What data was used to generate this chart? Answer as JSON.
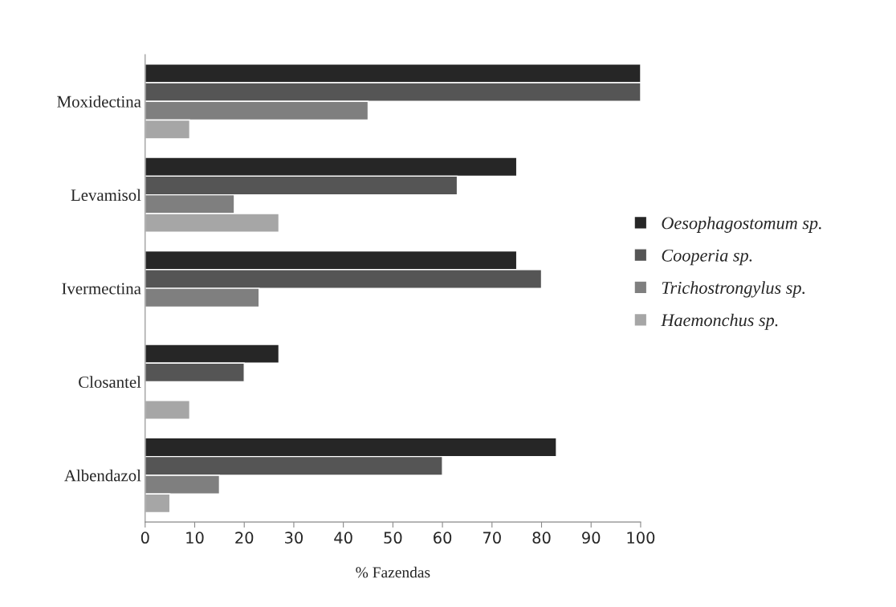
{
  "chart_data": {
    "type": "bar",
    "orientation": "horizontal",
    "xlabel": "% Fazendas",
    "categories": [
      "Moxidectina",
      "Levamisol",
      "Ivermectina",
      "Closantel",
      "Albendazol"
    ],
    "series": [
      {
        "name": "Oesophagostomum sp.",
        "color": "#262626",
        "values": [
          100,
          75,
          75,
          27,
          83
        ]
      },
      {
        "name": "Cooperia sp.",
        "color": "#555555",
        "values": [
          100,
          63,
          80,
          20,
          60
        ]
      },
      {
        "name": "Trichostrongylus sp.",
        "color": "#7f7f7f",
        "values": [
          45,
          18,
          23,
          null,
          15
        ]
      },
      {
        "name": "Haemonchus sp.",
        "color": "#a6a6a6",
        "values": [
          9,
          27,
          null,
          9,
          5
        ]
      }
    ],
    "xlim": [
      0,
      100
    ],
    "xticks": [
      0,
      10,
      20,
      30,
      40,
      50,
      60,
      70,
      80,
      90,
      100
    ],
    "grid": false,
    "legend": "right"
  }
}
